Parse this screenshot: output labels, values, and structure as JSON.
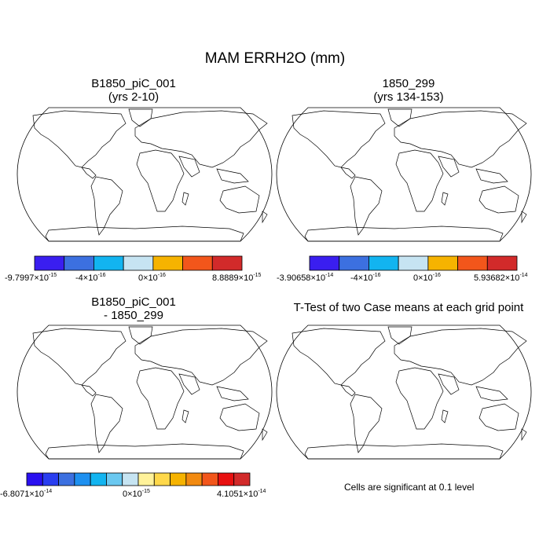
{
  "figure_title": "MAM ERRH2O (mm)",
  "colors": {
    "land_base": "#f2f2f2",
    "outline": "#000000",
    "significance": "#e00000"
  },
  "chart_data": [
    {
      "type": "heatmap",
      "panel": "top-left",
      "title_line1": "B1850_piC_001",
      "title_line2": "(yrs 2-10)",
      "projection": "Robinson",
      "colorbar": {
        "colors": [
          "#3a1ef0",
          "#3c70e0",
          "#12b4f0",
          "#c6e4f2",
          "#f6b300",
          "#f2561b",
          "#d22a2a"
        ],
        "labels": [
          {
            "mant": "-9.7997",
            "exp": "-15"
          },
          {
            "mant": "-4",
            "exp": "-16"
          },
          {
            "mant": "0",
            "exp": "-16"
          },
          {
            "mant": "8.8889",
            "exp": "-15"
          }
        ]
      },
      "field_palette": [
        "#f6b300",
        "#f6b300",
        "#f6b300",
        "#f0c040",
        "#c6e4f2",
        "#12b4f0",
        "#f2561b",
        "#3a1ef0",
        "#d22a2a"
      ]
    },
    {
      "type": "heatmap",
      "panel": "top-right",
      "title_line1": "1850_299",
      "title_line2": "(yrs 134-153)",
      "projection": "Robinson",
      "colorbar": {
        "colors": [
          "#3a1ef0",
          "#3c70e0",
          "#12b4f0",
          "#c6e4f2",
          "#f6b300",
          "#f2561b",
          "#d22a2a"
        ],
        "labels": [
          {
            "mant": "-3.90658",
            "exp": "-14"
          },
          {
            "mant": "-4",
            "exp": "-16"
          },
          {
            "mant": "0",
            "exp": "-16"
          },
          {
            "mant": "5.93682",
            "exp": "-14"
          }
        ]
      },
      "field_palette": [
        "#f6b300",
        "#f6b300",
        "#f6b300",
        "#f0c040",
        "#c6e4f2",
        "#12b4f0",
        "#f2561b",
        "#3a1ef0",
        "#d22a2a"
      ]
    },
    {
      "type": "heatmap",
      "panel": "bottom-left",
      "title_line1": "B1850_piC_001",
      "title_line2": "- 1850_299",
      "projection": "Robinson",
      "colorbar": {
        "colors": [
          "#2a10f0",
          "#2a3ef0",
          "#3c70e0",
          "#1e90f0",
          "#12b4f0",
          "#6ac8f0",
          "#c6e4f2",
          "#fff29a",
          "#ffd84a",
          "#f6b300",
          "#f28a10",
          "#f2561b",
          "#e81010",
          "#d22a2a"
        ],
        "labels": [
          {
            "mant": "-6.8071",
            "exp": "-14"
          },
          {
            "mant": "0",
            "exp": "-15"
          },
          {
            "mant": "4.1051",
            "exp": "-14"
          }
        ]
      },
      "field_palette": [
        "#c6e4f2",
        "#c6e4f2",
        "#c6e4f2",
        "#fff29a",
        "#fff29a",
        "#ffd84a",
        "#6ac8f0",
        "#f2f2f2"
      ]
    },
    {
      "type": "heatmap",
      "panel": "bottom-right",
      "title_line1": "T-Test of two Case means at each grid point",
      "title_line2": "",
      "projection": "Robinson",
      "significance_level": 0.1,
      "note": "Cells are significant at 0.1 level"
    }
  ]
}
